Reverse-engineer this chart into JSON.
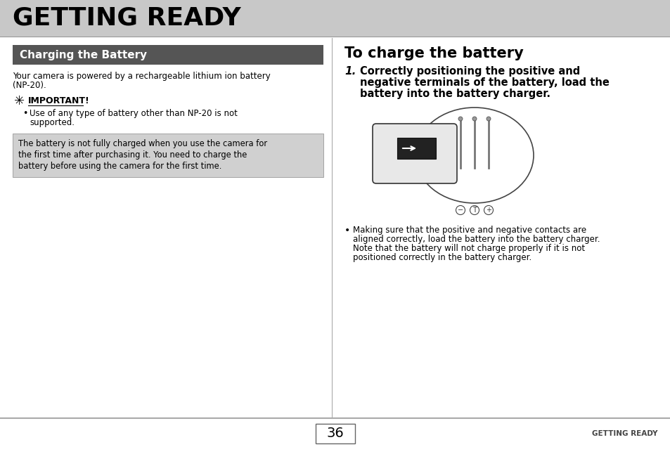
{
  "bg_color": "#ffffff",
  "header_bg": "#c8c8c8",
  "header_text": "GETTING READY",
  "header_text_color": "#000000",
  "header_font_size": 26,
  "left_section_header_bg": "#555555",
  "left_section_header_text": "Charging the Battery",
  "left_section_header_text_color": "#ffffff",
  "body_text_intro_line1": "Your camera is powered by a rechargeable lithium ion battery",
  "body_text_intro_line2": "(NP-20).",
  "important_label": "IMPORTANT!",
  "important_bullet_line1": "Use of any type of battery other than NP-20 is not",
  "important_bullet_line2": "supported.",
  "note_box_line1": "The battery is not fully charged when you use the camera for",
  "note_box_line2": "the first time after purchasing it. You need to charge the",
  "note_box_line3": "battery before using the camera for the first time.",
  "note_box_bg": "#d0d0d0",
  "right_section_title": "To charge the battery",
  "step1_line1": "Correctly positioning the positive and",
  "step1_line2": "negative terminals of the battery, load the",
  "step1_line3": "battery into the battery charger.",
  "bullet2_line1": "Making sure that the positive and negative contacts are",
  "bullet2_line2": "aligned correctly, load the battery into the battery charger.",
  "bullet2_line3": "Note that the battery will not charge properly if it is not",
  "bullet2_line4": "positioned correctly in the battery charger.",
  "footer_line_color": "#aaaaaa",
  "footer_page": "36",
  "footer_label": "GETTING READY",
  "footer_label_color": "#444444",
  "divider_color": "#aaaaaa",
  "body_font_size": 8.5,
  "note_font_size": 8.3,
  "step1_font_size": 10.5,
  "bullet2_font_size": 8.5
}
